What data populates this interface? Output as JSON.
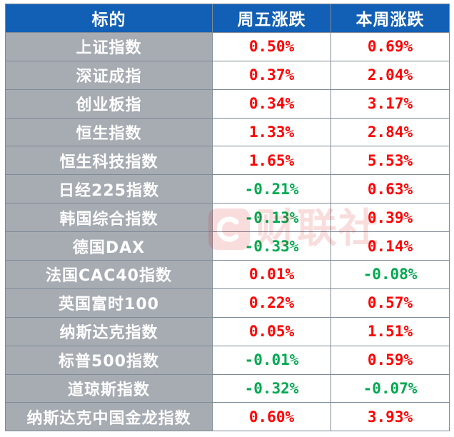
{
  "table": {
    "headers": [
      "标的",
      "周五涨跌",
      "本周涨跌"
    ],
    "rows": [
      {
        "name": "上证指数",
        "friday": "0.50%",
        "friday_dir": "up",
        "week": "0.69%",
        "week_dir": "up"
      },
      {
        "name": "深证成指",
        "friday": "0.37%",
        "friday_dir": "up",
        "week": "2.04%",
        "week_dir": "up"
      },
      {
        "name": "创业板指",
        "friday": "0.34%",
        "friday_dir": "up",
        "week": "3.17%",
        "week_dir": "up"
      },
      {
        "name": "恒生指数",
        "friday": "1.33%",
        "friday_dir": "up",
        "week": "2.84%",
        "week_dir": "up"
      },
      {
        "name": "恒生科技指数",
        "friday": "1.65%",
        "friday_dir": "up",
        "week": "5.53%",
        "week_dir": "up"
      },
      {
        "name": "日经225指数",
        "friday": "-0.21%",
        "friday_dir": "down",
        "week": "0.63%",
        "week_dir": "up"
      },
      {
        "name": "韩国综合指数",
        "friday": "-0.13%",
        "friday_dir": "down",
        "week": "0.39%",
        "week_dir": "up"
      },
      {
        "name": "德国DAX",
        "friday": "-0.33%",
        "friday_dir": "down",
        "week": "0.14%",
        "week_dir": "up"
      },
      {
        "name": "法国CAC40指数",
        "friday": "0.01%",
        "friday_dir": "up",
        "week": "-0.08%",
        "week_dir": "down"
      },
      {
        "name": "英国富时100",
        "friday": "0.22%",
        "friday_dir": "up",
        "week": "0.57%",
        "week_dir": "up"
      },
      {
        "name": "纳斯达克指数",
        "friday": "0.05%",
        "friday_dir": "up",
        "week": "1.51%",
        "week_dir": "up"
      },
      {
        "name": "标普500指数",
        "friday": "-0.01%",
        "friday_dir": "down",
        "week": "0.59%",
        "week_dir": "up"
      },
      {
        "name": "道琼斯指数",
        "friday": "-0.32%",
        "friday_dir": "down",
        "week": "-0.07%",
        "week_dir": "down"
      },
      {
        "name": "纳斯达克中国金龙指数",
        "friday": "0.60%",
        "friday_dir": "up",
        "week": "3.93%",
        "week_dir": "up"
      }
    ]
  },
  "watermark": {
    "text": "财联社",
    "icon": "cls-logo-icon"
  },
  "colors": {
    "header_bg": "#1260b5",
    "name_cell_bg": "#a7acb3",
    "up": "#ff0000",
    "down": "#00a94f"
  }
}
